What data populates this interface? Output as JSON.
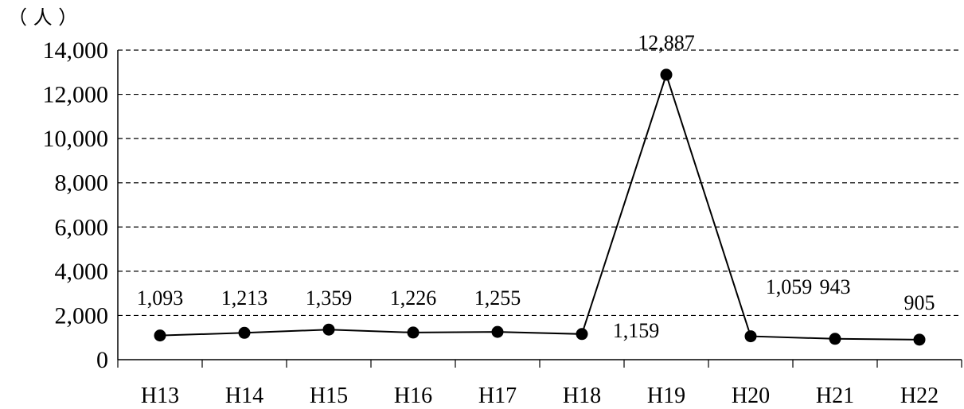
{
  "chart_data": {
    "type": "line",
    "unit_label": "（ 人 ）",
    "categories": [
      "H13",
      "H14",
      "H15",
      "H16",
      "H17",
      "H18",
      "H19",
      "H20",
      "H21",
      "H22"
    ],
    "series": [
      {
        "values": [
          1093,
          1213,
          1359,
          1226,
          1255,
          1159,
          12887,
          1059,
          943,
          905
        ],
        "labels": [
          "1,093",
          "1,213",
          "1,359",
          "1,226",
          "1,255",
          "1,159",
          "12,887",
          "1,059",
          "943",
          "905"
        ]
      }
    ],
    "yticks": [
      "0",
      "2,000",
      "4,000",
      "6,000",
      "8,000",
      "10,000",
      "12,000",
      "14,000"
    ],
    "ylim": [
      0,
      14000
    ],
    "grid": "horizontal dashed",
    "line_color": "#000000",
    "marker_color": "#000000"
  }
}
